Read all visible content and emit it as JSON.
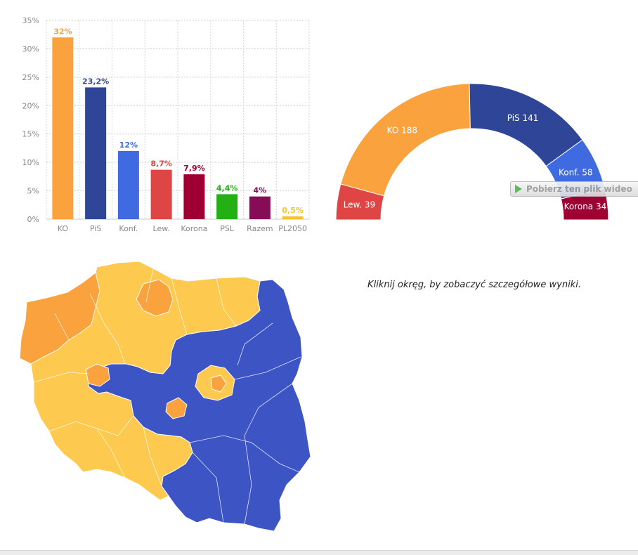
{
  "chart_data": [
    {
      "type": "bar",
      "categories": [
        "KO",
        "PiS",
        "Konf.",
        "Lew.",
        "Korona",
        "PSL",
        "Razem",
        "PL2050"
      ],
      "values": [
        32,
        23.2,
        12,
        8.7,
        7.9,
        4.4,
        4,
        0.5
      ],
      "data_labels": [
        "32%",
        "23,2%",
        "12%",
        "8,7%",
        "7,9%",
        "4,4%",
        "4%",
        "0,5%"
      ],
      "colors": [
        "#f9a23e",
        "#2f4598",
        "#3f6ae0",
        "#e04545",
        "#9e0033",
        "#22b014",
        "#870c57",
        "#f6c32f"
      ],
      "yticks": [
        "0%",
        "5%",
        "10%",
        "15%",
        "20%",
        "25%",
        "30%",
        "35%"
      ],
      "ylim": [
        0,
        35
      ],
      "grid": true
    },
    {
      "type": "pie",
      "style": "semicircle",
      "labels": [
        "Lew.",
        "KO",
        "PiS",
        "Konf.",
        "Korona"
      ],
      "values": [
        39,
        188,
        141,
        58,
        34
      ],
      "colors": [
        "#e04545",
        "#f9a23e",
        "#2f4598",
        "#3f6ae0",
        "#9e0033"
      ],
      "slice_labels": [
        "Lew. 39",
        "KO 188",
        "PiS 141",
        "Konf. 58",
        "Korona 34"
      ]
    }
  ],
  "map": {
    "colors": {
      "ko": "#f9a23e",
      "pis": "#3d55c4",
      "third": "#fdc94f",
      "border": "#ffffff"
    },
    "hint": "Kliknij okręg, by zobaczyć szczegółowe wyniki."
  },
  "download_button": {
    "label": "Pobierz ten plik wideo",
    "icon": "play-icon"
  }
}
